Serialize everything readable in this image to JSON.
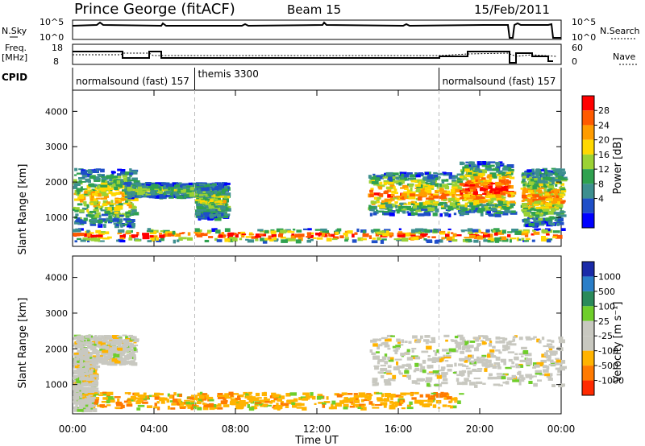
{
  "header": {
    "station": "Prince George (fitACF)",
    "beam": "Beam 15",
    "date": "15/Feb/2011"
  },
  "labels": {
    "nsky": "N.Sky",
    "nsearch": "N.Search",
    "freq": "Freq.",
    "mhz": "[MHz]",
    "nave": "Nave",
    "cpid": "CPID",
    "xlabel": "Time UT",
    "ylabel": "Slant Range [km]",
    "power_label": "Power [dB]",
    "velocity_label": "Velocity [m s⁻¹]"
  },
  "noise_axis": {
    "left_ticks": [
      "10^5",
      "10^0"
    ],
    "right_ticks": [
      "10^5",
      "10^0"
    ]
  },
  "freq_axis": {
    "left_ticks": [
      "18",
      "8"
    ],
    "right_ticks": [
      "60",
      "0"
    ]
  },
  "cpid_segments": [
    {
      "label": "normalsound (fast) 157",
      "start_hour": 0
    },
    {
      "label": "themis 3300",
      "start_hour": 6
    },
    {
      "label": "normalsound (fast) 157",
      "start_hour": 18
    }
  ],
  "power_scale": {
    "ticks": [
      "28",
      "24",
      "20",
      "16",
      "12",
      "8",
      "4"
    ],
    "colors": [
      "#ff0000",
      "#ff5a00",
      "#ff9c00",
      "#ffd800",
      "#9bd234",
      "#2fa14f",
      "#3d8f8f",
      "#1f4fc8",
      "#0000ff"
    ]
  },
  "velocity_scale": {
    "ticks": [
      "1000",
      "500",
      "100",
      "25",
      "-25",
      "-100",
      "-500",
      "-1000"
    ],
    "colors": [
      "#1a2aa8",
      "#2a7ec8",
      "#2a8a5a",
      "#6fce2a",
      "#c8c8c0",
      "#c8c8c0",
      "#ffb300",
      "#ff7a00",
      "#ff2a00"
    ]
  },
  "chart_data": {
    "type": "heatmap",
    "x_ticks": [
      "00:00",
      "04:00",
      "08:00",
      "12:00",
      "16:00",
      "20:00",
      "00:00"
    ],
    "y_ticks": [
      "1000",
      "2000",
      "3000",
      "4000"
    ],
    "xlim_hours": [
      0,
      24
    ],
    "ylim_km": [
      180,
      4600
    ],
    "panels": [
      {
        "name": "Power",
        "bands": [
          {
            "t0": 0.0,
            "t1": 24.0,
            "r0": 350,
            "r1": 700,
            "level": 0.8
          },
          {
            "t0": 0.0,
            "t1": 3.0,
            "r0": 800,
            "r1": 2400,
            "level": 0.5
          },
          {
            "t0": 2.5,
            "t1": 6.5,
            "r0": 1600,
            "r1": 2000,
            "level": 0.3
          },
          {
            "t0": 6.0,
            "t1": 7.5,
            "r0": 1000,
            "r1": 2000,
            "level": 0.35
          },
          {
            "t0": 14.5,
            "t1": 19.0,
            "r0": 1100,
            "r1": 2300,
            "level": 0.6
          },
          {
            "t0": 19.0,
            "t1": 21.5,
            "r0": 1100,
            "r1": 2600,
            "level": 0.75
          },
          {
            "t0": 22.0,
            "t1": 24.0,
            "r0": 800,
            "r1": 2400,
            "level": 0.55
          }
        ]
      },
      {
        "name": "Velocity",
        "bands": [
          {
            "t0": 0.0,
            "t1": 1.0,
            "r0": 300,
            "r1": 1800,
            "level": 0.3
          },
          {
            "t0": 1.0,
            "t1": 19.0,
            "r0": 350,
            "r1": 800,
            "level": 0.15
          },
          {
            "t0": 0.0,
            "t1": 3.0,
            "r0": 1600,
            "r1": 2400,
            "level": 0.5
          },
          {
            "t0": 14.5,
            "t1": 24.0,
            "r0": 1000,
            "r1": 2400,
            "level": 0.5
          }
        ]
      }
    ]
  }
}
